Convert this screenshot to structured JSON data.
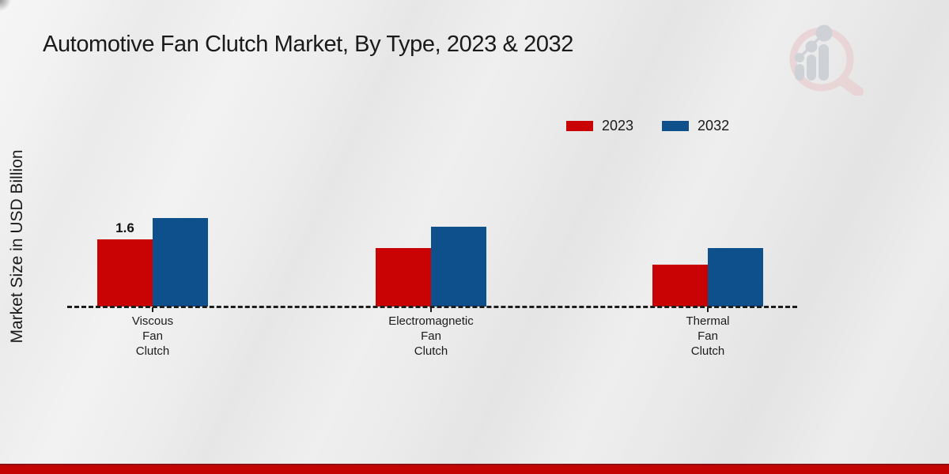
{
  "page": {
    "title": "Automotive Fan Clutch Market, By Type, 2023 & 2032",
    "y_axis_label": "Market Size in USD Billion"
  },
  "colors": {
    "series_2023": "#c90303",
    "series_2032": "#0d508c",
    "footer_bar": "#c40303",
    "text": "#1a1a1a"
  },
  "icons": {
    "logo": "magnifier-growth-chart-watermark"
  },
  "chart_data": {
    "type": "bar",
    "title": "Automotive Fan Clutch Market, By Type, 2023 & 2032",
    "xlabel": "",
    "ylabel": "Market Size in USD Billion",
    "categories": [
      "Viscous Fan Clutch",
      "Electromagnetic Fan Clutch",
      "Thermal Fan Clutch"
    ],
    "series": [
      {
        "name": "2023",
        "color": "#c90303",
        "values": [
          1.6,
          1.4,
          1.0
        ]
      },
      {
        "name": "2032",
        "color": "#0d508c",
        "values": [
          2.1,
          1.9,
          1.4
        ]
      }
    ],
    "value_labels": [
      {
        "series": "2023",
        "category": "Viscous Fan Clutch",
        "text": "1.6"
      }
    ],
    "ylim": [
      0,
      2.6
    ],
    "grid": false,
    "baseline_style": "dashed",
    "legend_position": "top-right"
  }
}
